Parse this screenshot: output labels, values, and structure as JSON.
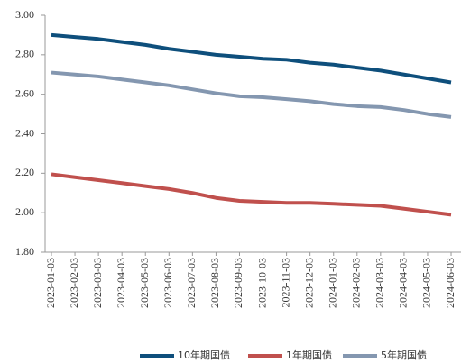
{
  "chart_data": {
    "type": "line",
    "categories": [
      "2023-01-03",
      "2023-02-03",
      "2023-03-03",
      "2023-04-03",
      "2023-05-03",
      "2023-06-03",
      "2023-07-03",
      "2023-08-03",
      "2023-09-03",
      "2023-10-03",
      "2023-11-03",
      "2023-12-03",
      "2024-01-03",
      "2024-02-03",
      "2024-03-03",
      "2024-04-03",
      "2024-05-03",
      "2024-06-03"
    ],
    "series": [
      {
        "name": "10年期国债",
        "color": "#0e4f7c",
        "values": [
          2.9,
          2.89,
          2.88,
          2.865,
          2.85,
          2.83,
          2.815,
          2.8,
          2.79,
          2.78,
          2.775,
          2.76,
          2.75,
          2.735,
          2.72,
          2.7,
          2.68,
          2.66
        ]
      },
      {
        "name": "1年期国债",
        "color": "#c0504d",
        "values": [
          2.195,
          2.18,
          2.165,
          2.15,
          2.135,
          2.12,
          2.1,
          2.075,
          2.06,
          2.055,
          2.05,
          2.05,
          2.045,
          2.04,
          2.035,
          2.02,
          2.005,
          1.99
        ]
      },
      {
        "name": "5年期国债",
        "color": "#8497b0",
        "values": [
          2.71,
          2.7,
          2.69,
          2.675,
          2.66,
          2.645,
          2.625,
          2.605,
          2.59,
          2.585,
          2.575,
          2.565,
          2.55,
          2.54,
          2.535,
          2.52,
          2.5,
          2.485
        ]
      }
    ],
    "ylim": [
      1.8,
      3.0
    ],
    "yticks": [
      {
        "value": 1.8,
        "label": "1.80"
      },
      {
        "value": 2.0,
        "label": "2.00"
      },
      {
        "value": 2.2,
        "label": "2.20"
      },
      {
        "value": 2.4,
        "label": "2.40"
      },
      {
        "value": 2.6,
        "label": "2.60"
      },
      {
        "value": 2.8,
        "label": "2.80"
      },
      {
        "value": 3.0,
        "label": "3.00"
      }
    ],
    "legend": "bottom"
  }
}
